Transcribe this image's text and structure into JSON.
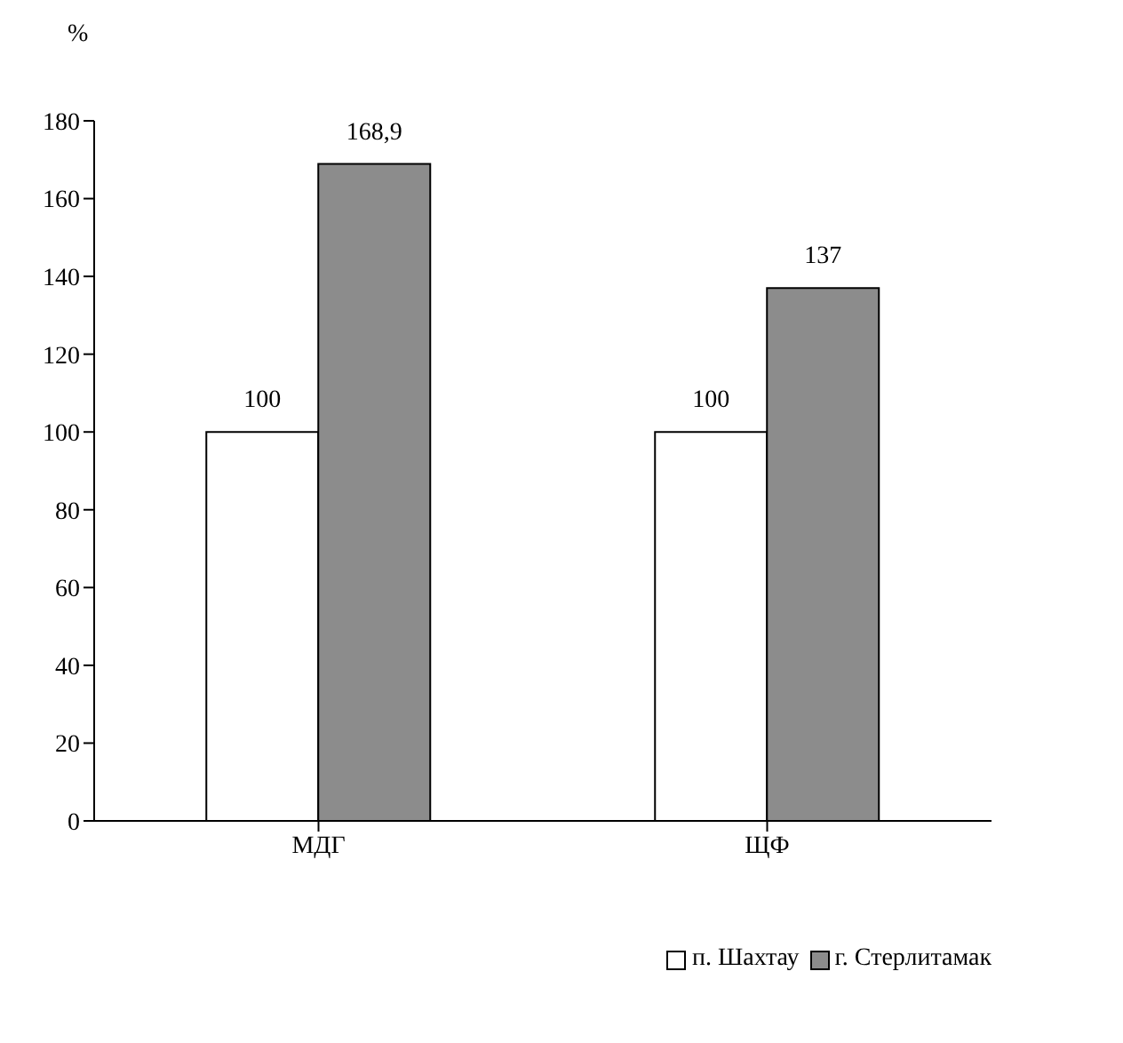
{
  "chart_data": {
    "type": "bar",
    "ylabel": "%",
    "categories": [
      "МДГ",
      "ЩФ"
    ],
    "series": [
      {
        "name": "п. Шахтау",
        "color": "#ffffff",
        "values": [
          100,
          100
        ],
        "value_labels": [
          "100",
          "100"
        ]
      },
      {
        "name": "г. Стерлитамак",
        "color": "#8c8c8c",
        "values": [
          168.9,
          137
        ],
        "value_labels": [
          "168,9",
          "137"
        ]
      }
    ],
    "ylim": [
      0,
      180
    ],
    "yticks": [
      0,
      20,
      40,
      60,
      80,
      100,
      120,
      140,
      160,
      180
    ],
    "grid": false,
    "legend": "bottom right"
  }
}
